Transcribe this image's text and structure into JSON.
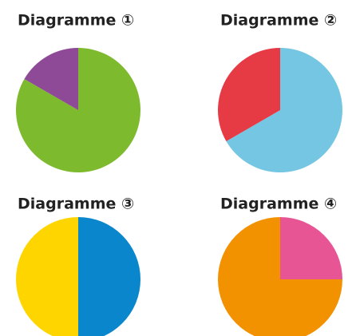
{
  "chart_data": [
    {
      "type": "pie",
      "title": "Diagramme ①",
      "values": [
        5,
        1
      ],
      "colors": [
        "#7dba2e",
        "#8e4a97"
      ]
    },
    {
      "type": "pie",
      "title": "Diagramme ②",
      "values": [
        2,
        1
      ],
      "colors": [
        "#74c6e2",
        "#e63a45"
      ]
    },
    {
      "type": "pie",
      "title": "Diagramme ③",
      "values": [
        1,
        1
      ],
      "colors": [
        "#0a86cc",
        "#ffd500"
      ]
    },
    {
      "type": "pie",
      "title": "Diagramme ④",
      "values": [
        1,
        3
      ],
      "colors": [
        "#e85595",
        "#f39200"
      ]
    }
  ]
}
